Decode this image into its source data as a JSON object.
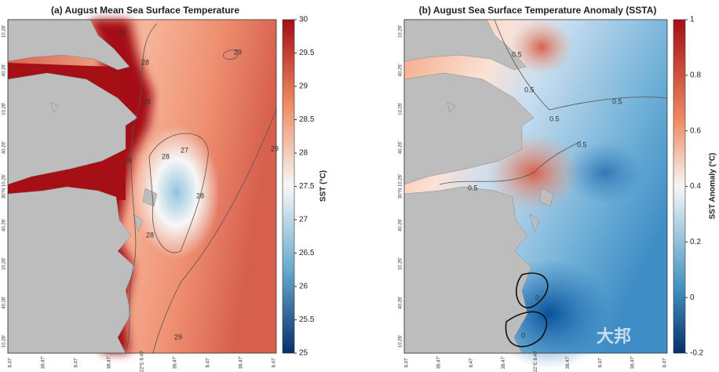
{
  "panels": [
    {
      "title": "(a) August Mean Sea Surface Temperature",
      "colorbar": {
        "label": "SST (°C)",
        "lim": [
          25,
          30
        ],
        "ticks": [
          30,
          29.5,
          29,
          28.5,
          28,
          27.5,
          27,
          26.5,
          26,
          25.5,
          25
        ]
      },
      "contour_labels": [
        "29",
        "28",
        "29",
        "28",
        "27",
        "28",
        "28",
        "28",
        "29",
        "29",
        "28"
      ]
    },
    {
      "title": "(b) August Sea Surface Temperature Anomaly (SSTA)",
      "colorbar": {
        "label": "SST Anomaly (°C)",
        "lim": [
          -0.2,
          1
        ],
        "ticks": [
          1,
          0.8,
          0.6,
          0.4,
          0.2,
          0,
          -0.2
        ]
      },
      "contour_labels": [
        "0.5",
        "0.5",
        "0.5",
        "0.5",
        "0.5",
        "0.5",
        "0",
        "0"
      ]
    }
  ],
  "y_tick_labels": [
    "10.26'",
    "40.26'",
    "10.26'",
    "40.26'",
    "30°N 10.26'",
    "40.26'",
    "10.26'",
    "40.26'",
    "10.26'"
  ],
  "x_tick_labels": [
    "8.47'",
    "38.47'",
    "8.47'",
    "38.47'",
    "122°E 8.40'",
    "38.47'",
    "8.47'",
    "38.47'",
    "8.47'"
  ],
  "watermark": "大邦"
}
